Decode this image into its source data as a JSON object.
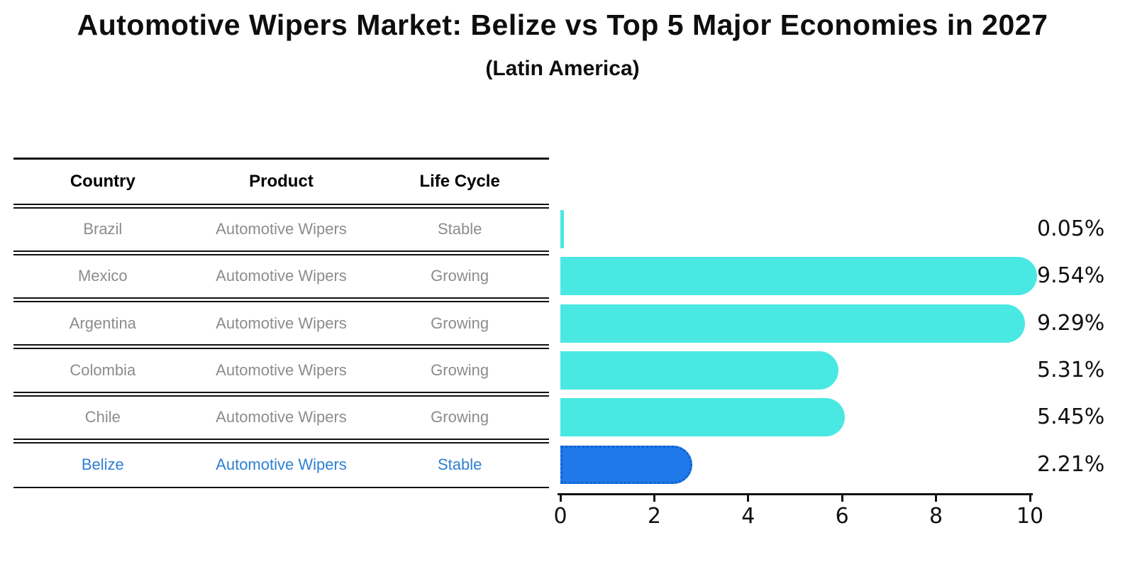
{
  "title": "Automotive Wipers Market: Belize vs Top 5 Major Economies in 2027",
  "subtitle": "(Latin America)",
  "table": {
    "headers": [
      "Country",
      "Product",
      "Life Cycle"
    ],
    "rows": [
      {
        "country": "Brazil",
        "product": "Automotive Wipers",
        "life_cycle": "Stable",
        "highlight": false
      },
      {
        "country": "Mexico",
        "product": "Automotive Wipers",
        "life_cycle": "Growing",
        "highlight": false
      },
      {
        "country": "Argentina",
        "product": "Automotive Wipers",
        "life_cycle": "Growing",
        "highlight": false
      },
      {
        "country": "Colombia",
        "product": "Automotive Wipers",
        "life_cycle": "Growing",
        "highlight": false
      },
      {
        "country": "Chile",
        "product": "Automotive Wipers",
        "life_cycle": "Growing",
        "highlight": false
      },
      {
        "country": "Belize",
        "product": "Automotive Wipers",
        "life_cycle": "Stable",
        "highlight": true
      }
    ]
  },
  "chart_data": {
    "type": "bar",
    "orientation": "horizontal",
    "categories": [
      "Brazil",
      "Mexico",
      "Argentina",
      "Colombia",
      "Chile",
      "Belize"
    ],
    "values": [
      0.05,
      9.54,
      9.29,
      5.31,
      5.45,
      2.21
    ],
    "value_labels": [
      "0.05%",
      "9.54%",
      "9.29%",
      "5.31%",
      "5.45%",
      "2.21%"
    ],
    "highlight_index": 5,
    "xlim": [
      0,
      10
    ],
    "xticks": [
      "0",
      "2",
      "4",
      "6",
      "8",
      "10"
    ],
    "grid": false,
    "legend": null,
    "xlabel": "",
    "ylabel": ""
  },
  "colors": {
    "bar": "#4AE8E2",
    "highlight_bar": "#2079E8",
    "highlight_bar_border": "#0F62D0",
    "row_text": "#8C8C8C",
    "highlight_text": "#2E7FD2",
    "axis": "#111111"
  }
}
